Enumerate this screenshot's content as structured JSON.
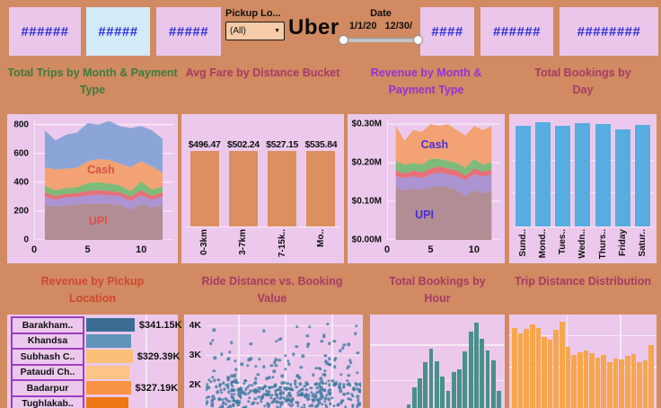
{
  "theme": {
    "background": "#d18a61",
    "panel": "#ecc9ec",
    "card_pink": "#eac7ea",
    "card_blue": "#d3eaf9",
    "kpi_text_blue": "#2f2fd8",
    "gridline": "#f6e9f6"
  },
  "topbar": {
    "cards": [
      {
        "text": "######"
      },
      {
        "text": "#####"
      },
      {
        "text": "#####"
      },
      {
        "text": "####"
      },
      {
        "text": "######"
      },
      {
        "text": "########"
      }
    ],
    "pickup_filter": {
      "label": "Pickup Lo...",
      "value": "(All)",
      "caret": "▼"
    },
    "logo": "Uber",
    "date_filter": {
      "label": "Date",
      "start": "1/1/20",
      "end": "12/30/"
    }
  },
  "chart_data": [
    {
      "id": "trips",
      "type": "area",
      "title": "Total Trips by Month & Payment Type",
      "title_color": "#3d7b3d",
      "x": [
        1,
        2,
        3,
        4,
        5,
        6,
        7,
        8,
        9,
        10,
        11,
        12
      ],
      "x_range": [
        0,
        13
      ],
      "y_range": [
        0,
        835
      ],
      "y_ticks": [
        {
          "v": 0,
          "label": "0"
        },
        {
          "v": 200,
          "label": "200"
        },
        {
          "v": 400,
          "label": "400"
        },
        {
          "v": 600,
          "label": "600"
        },
        {
          "v": 800,
          "label": "800"
        }
      ],
      "x_ticks": [
        {
          "v": 0,
          "label": "0"
        },
        {
          "v": 5,
          "label": "5"
        },
        {
          "v": 10,
          "label": "10"
        }
      ],
      "series": [
        {
          "name": "UPI",
          "color": "#b28d95",
          "values": [
            245,
            230,
            240,
            245,
            250,
            255,
            250,
            245,
            210,
            250,
            225,
            240
          ]
        },
        {
          "name": "unlabeled-1",
          "color": "#ab94d1",
          "values": [
            55,
            50,
            55,
            55,
            60,
            60,
            60,
            60,
            60,
            60,
            55,
            60
          ]
        },
        {
          "name": "unlabeled-2",
          "color": "#e57079",
          "values": [
            30,
            25,
            25,
            25,
            30,
            30,
            30,
            25,
            30,
            35,
            25,
            30
          ]
        },
        {
          "name": "unlabeled-3",
          "color": "#7eba78",
          "values": [
            45,
            40,
            40,
            40,
            55,
            55,
            50,
            50,
            40,
            60,
            45,
            40
          ]
        },
        {
          "name": "Cash",
          "color": "#f2a273",
          "values": [
            130,
            145,
            135,
            135,
            150,
            160,
            165,
            150,
            165,
            140,
            160,
            100
          ]
        },
        {
          "name": "unlabeled-4",
          "color": "#8ca5d8",
          "values": [
            255,
            200,
            235,
            245,
            265,
            240,
            270,
            260,
            270,
            245,
            250,
            230
          ]
        }
      ],
      "labels": [
        {
          "text": "Cash",
          "color": "#d9504a",
          "x": 48,
          "y": 42
        },
        {
          "text": "UPI",
          "color": "#d9504a",
          "x": 46,
          "y": 84
        }
      ]
    },
    {
      "id": "fare",
      "type": "bar",
      "layout": "columns",
      "title": "Avg Fare by Distance Bucket",
      "categories": [
        "0-3km",
        "3-7km",
        "7-15k..",
        "Mo.."
      ],
      "values": [
        496.47,
        502.24,
        527.15,
        535.84
      ],
      "value_labels": [
        "$496.47",
        "$502.24",
        "$527.15",
        "$535.84"
      ],
      "ymax": 545,
      "bar_color": "#dd8f60",
      "gridlines": []
    },
    {
      "id": "revenue",
      "type": "area",
      "title": "Revenue by Month & Payment Type",
      "title_color": "#9632d2",
      "x": [
        1,
        2,
        3,
        4,
        5,
        6,
        7,
        8,
        9,
        10,
        11,
        12
      ],
      "x_range": [
        0,
        13
      ],
      "y_range": [
        0,
        0.312
      ],
      "y_ticks": [
        {
          "v": 0,
          "label": "$0.00M"
        },
        {
          "v": 0.1,
          "label": "$0.10M"
        },
        {
          "v": 0.2,
          "label": "$0.20M"
        },
        {
          "v": 0.3,
          "label": "$0.30M"
        }
      ],
      "x_ticks": [
        {
          "v": 0,
          "label": "0"
        },
        {
          "v": 5,
          "label": "5"
        },
        {
          "v": 10,
          "label": "10"
        }
      ],
      "series": [
        {
          "name": "UPI",
          "color": "#b28d95",
          "values": [
            0.135,
            0.128,
            0.134,
            0.13,
            0.136,
            0.14,
            0.136,
            0.13,
            0.114,
            0.13,
            0.12,
            0.13
          ]
        },
        {
          "name": "unlabeled-1",
          "color": "#ab94d1",
          "values": [
            0.03,
            0.032,
            0.031,
            0.03,
            0.034,
            0.035,
            0.034,
            0.035,
            0.041,
            0.04,
            0.045,
            0.04
          ]
        },
        {
          "name": "unlabeled-2",
          "color": "#e57079",
          "values": [
            0.015,
            0.012,
            0.015,
            0.015,
            0.015,
            0.015,
            0.015,
            0.015,
            0.012,
            0.015,
            0.012,
            0.012
          ]
        },
        {
          "name": "unlabeled-3",
          "color": "#7eba78",
          "values": [
            0.025,
            0.023,
            0.02,
            0.02,
            0.025,
            0.02,
            0.02,
            0.02,
            0.02,
            0.025,
            0.018,
            0.02
          ]
        },
        {
          "name": "Cash",
          "color": "#f2a273",
          "values": [
            0.09,
            0.062,
            0.085,
            0.085,
            0.09,
            0.085,
            0.095,
            0.085,
            0.083,
            0.085,
            0.09,
            0.093
          ]
        }
      ],
      "labels": [
        {
          "text": "Cash",
          "color": "#4b2fd6",
          "x": 42,
          "y": 21
        },
        {
          "text": "UPI",
          "color": "#4b2fd6",
          "x": 33,
          "y": 79
        }
      ]
    },
    {
      "id": "day",
      "type": "bar",
      "layout": "columns",
      "title": "Total Bookings by Day",
      "categories": [
        "Sund..",
        "Mond..",
        "Tues..",
        "Wedn..",
        "Thurs..",
        "Friday",
        "Satur.."
      ],
      "values": [
        0.93,
        0.97,
        0.93,
        0.96,
        0.95,
        0.9,
        0.94
      ],
      "ymax": 1,
      "bar_color": "#58ade0",
      "gridlines": [
        0.38,
        0.68
      ]
    },
    {
      "id": "location",
      "type": "table",
      "title": "Revenue by Pickup Location",
      "title_color": "#cf4632",
      "rows": [
        {
          "label": "Barakham..",
          "value": "$341.15K",
          "bar": 0.49,
          "color": "#3b6d94"
        },
        {
          "label": "Khandsa",
          "value": "",
          "bar": 0.45,
          "color": "#5f93b8"
        },
        {
          "label": "Subhash C..",
          "value": "$329.39K",
          "bar": 0.47,
          "color": "#fbbf77"
        },
        {
          "label": "Pataudi Ch..",
          "value": "",
          "bar": 0.44,
          "color": "#fcc485"
        },
        {
          "label": "Badarpur",
          "value": "$327.19K",
          "bar": 0.45,
          "color": "#f89343"
        },
        {
          "label": "Tughlakab..",
          "value": "",
          "bar": 0.43,
          "color": "#ee7613"
        }
      ]
    },
    {
      "id": "scatter",
      "type": "scatter",
      "title": "Ride Distance vs. Booking Value",
      "y_ticks": [
        {
          "v": 4,
          "label": "4K"
        },
        {
          "v": 3,
          "label": "3K"
        },
        {
          "v": 2,
          "label": "2K"
        }
      ],
      "y_range": [
        1.2,
        4.35
      ],
      "vgrid": [
        0.21,
        0.51,
        0.81
      ],
      "n_points": 430,
      "seed": 7,
      "dot_color": "#3d7aa0",
      "note": "dense band of points below 2K, sparser up to ~4.2K"
    },
    {
      "id": "hour",
      "type": "bar",
      "title": "Total Bookings by Hour",
      "values": [
        0.04,
        0.22,
        0.32,
        0.49,
        0.63,
        0.5,
        0.34,
        0.18,
        0.38,
        0.41,
        0.61,
        0.82,
        0.91,
        0.74,
        0.62,
        0.51,
        0.18
      ],
      "bar_color": "#47918a",
      "hgrid": [
        0.32,
        0.7
      ],
      "vgrid": []
    },
    {
      "id": "distance",
      "type": "bar",
      "title": "Trip Distance Distribution",
      "values": [
        0.86,
        0.8,
        0.85,
        0.89,
        0.86,
        0.76,
        0.73,
        0.84,
        0.92,
        0.65,
        0.57,
        0.6,
        0.62,
        0.59,
        0.54,
        0.57,
        0.49,
        0.53,
        0.52,
        0.56,
        0.58,
        0.49,
        0.51,
        0.67
      ],
      "bar_color": "#f7a64b",
      "hgrid": [
        0.22,
        0.56
      ],
      "vgrid": [
        0.39,
        0.75
      ]
    }
  ]
}
